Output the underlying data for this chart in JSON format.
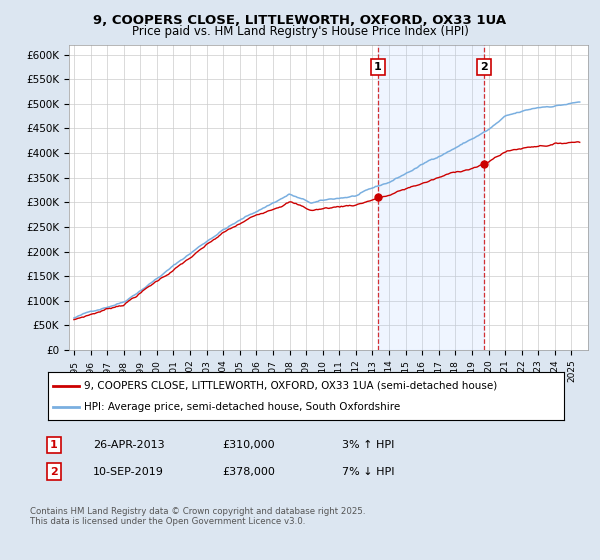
{
  "title": "9, COOPERS CLOSE, LITTLEWORTH, OXFORD, OX33 1UA",
  "subtitle": "Price paid vs. HM Land Registry's House Price Index (HPI)",
  "ylabel_ticks": [
    "£0",
    "£50K",
    "£100K",
    "£150K",
    "£200K",
    "£250K",
    "£300K",
    "£350K",
    "£400K",
    "£450K",
    "£500K",
    "£550K",
    "£600K"
  ],
  "ylim": [
    0,
    620000
  ],
  "ytick_vals": [
    0,
    50000,
    100000,
    150000,
    200000,
    250000,
    300000,
    350000,
    400000,
    450000,
    500000,
    550000,
    600000
  ],
  "red_line_color": "#cc0000",
  "blue_line_color": "#7aafe0",
  "shade_color": "#ddeeff",
  "background_color": "#dce6f1",
  "plot_bg_color": "#ffffff",
  "grid_color": "#cccccc",
  "sale1_date_num": 2013.32,
  "sale1_price": 310000,
  "sale2_date_num": 2019.71,
  "sale2_price": 378000,
  "legend_line1": "9, COOPERS CLOSE, LITTLEWORTH, OXFORD, OX33 1UA (semi-detached house)",
  "legend_line2": "HPI: Average price, semi-detached house, South Oxfordshire",
  "footnote": "Contains HM Land Registry data © Crown copyright and database right 2025.\nThis data is licensed under the Open Government Licence v3.0."
}
